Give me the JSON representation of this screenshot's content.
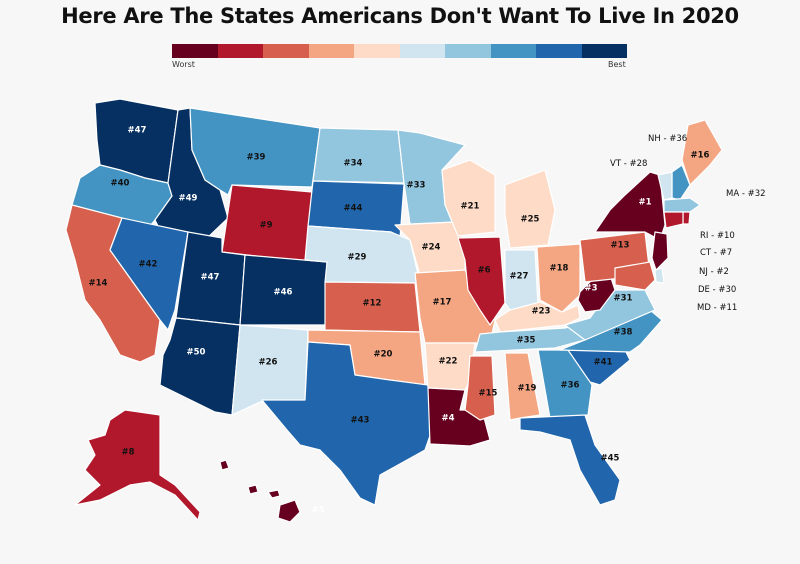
{
  "title": "Here Are The States Americans Don't Want To Live In 2020",
  "legend": {
    "low_label": "Worst",
    "high_label": "Best",
    "colors": [
      "#67001f",
      "#b2182b",
      "#d6604d",
      "#f4a582",
      "#fddbc7",
      "#d1e5f0",
      "#92c5de",
      "#4393c3",
      "#2166ac",
      "#053061"
    ]
  },
  "chart_data": {
    "type": "choropleth",
    "title": "Here Are The States Americans Don't Want To Live In 2020",
    "scale": {
      "low": "Worst",
      "high": "Best",
      "bins": 10,
      "metric": "rank (1 = worst)"
    },
    "states": [
      {
        "state": "WA",
        "label": "#47",
        "rank": 47
      },
      {
        "state": "OR",
        "label": "#40",
        "rank": 40
      },
      {
        "state": "CA",
        "label": "#14",
        "rank": 14
      },
      {
        "state": "ID",
        "label": "#49",
        "rank": 49
      },
      {
        "state": "NV",
        "label": "#42",
        "rank": 42
      },
      {
        "state": "MT",
        "label": "#39",
        "rank": 39
      },
      {
        "state": "WY",
        "label": "#9",
        "rank": 9
      },
      {
        "state": "UT",
        "label": "#47",
        "rank": 47
      },
      {
        "state": "AZ",
        "label": "#50",
        "rank": 50
      },
      {
        "state": "CO",
        "label": "#46",
        "rank": 46
      },
      {
        "state": "NM",
        "label": "#26",
        "rank": 26
      },
      {
        "state": "ND",
        "label": "#34",
        "rank": 34
      },
      {
        "state": "SD",
        "label": "#44",
        "rank": 44
      },
      {
        "state": "NE",
        "label": "#29",
        "rank": 29
      },
      {
        "state": "KS",
        "label": "#12",
        "rank": 12
      },
      {
        "state": "OK",
        "label": "#20",
        "rank": 20
      },
      {
        "state": "TX",
        "label": "#43",
        "rank": 43
      },
      {
        "state": "MN",
        "label": "#33",
        "rank": 33
      },
      {
        "state": "IA",
        "label": "#24",
        "rank": 24
      },
      {
        "state": "MO",
        "label": "#17",
        "rank": 17
      },
      {
        "state": "AR",
        "label": "#22",
        "rank": 22
      },
      {
        "state": "LA",
        "label": "#4",
        "rank": 4
      },
      {
        "state": "WI",
        "label": "#21",
        "rank": 21
      },
      {
        "state": "IL",
        "label": "#6",
        "rank": 6
      },
      {
        "state": "MI",
        "label": "#25",
        "rank": 25
      },
      {
        "state": "IN",
        "label": "#27",
        "rank": 27
      },
      {
        "state": "OH",
        "label": "#18",
        "rank": 18
      },
      {
        "state": "KY",
        "label": "#23",
        "rank": 23
      },
      {
        "state": "TN",
        "label": "#35",
        "rank": 35
      },
      {
        "state": "MS",
        "label": "#15",
        "rank": 15
      },
      {
        "state": "AL",
        "label": "#19",
        "rank": 19
      },
      {
        "state": "GA",
        "label": "#36",
        "rank": 36
      },
      {
        "state": "FL",
        "label": "#45",
        "rank": 45
      },
      {
        "state": "SC",
        "label": "#41",
        "rank": 41
      },
      {
        "state": "NC",
        "label": "#38",
        "rank": 38
      },
      {
        "state": "VA",
        "label": "#31",
        "rank": 31
      },
      {
        "state": "WV",
        "label": "#3",
        "rank": 3
      },
      {
        "state": "PA",
        "label": "#13",
        "rank": 13
      },
      {
        "state": "NY",
        "label": "#1",
        "rank": 1
      },
      {
        "state": "ME",
        "label": "#16",
        "rank": 16
      },
      {
        "state": "AK",
        "label": "#8",
        "rank": 8
      },
      {
        "state": "HI",
        "label": "#5",
        "rank": 5
      },
      {
        "state": "NH",
        "label": "NH - #36",
        "rank": 36
      },
      {
        "state": "VT",
        "label": "VT - #28",
        "rank": 28
      },
      {
        "state": "MA",
        "label": "MA - #32",
        "rank": 32
      },
      {
        "state": "RI",
        "label": "RI - #10",
        "rank": 10
      },
      {
        "state": "CT",
        "label": "CT - #7",
        "rank": 7
      },
      {
        "state": "NJ",
        "label": "NJ - #2",
        "rank": 2
      },
      {
        "state": "DE",
        "label": "DE - #30",
        "rank": 30
      },
      {
        "state": "MD",
        "label": "MD - #11",
        "rank": 11
      }
    ]
  }
}
